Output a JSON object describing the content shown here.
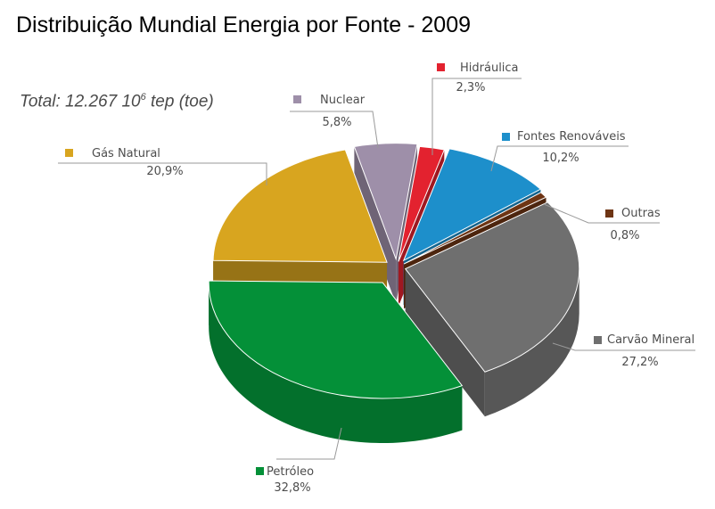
{
  "chart_data": {
    "type": "pie",
    "title": "Distribuição Mundial Energia por Fonte - 2009",
    "subtitle": {
      "prefix": "Total: 12.267 10",
      "sup": "6",
      "suffix": " tep (toe)"
    },
    "slices": [
      {
        "name": "Hidráulica",
        "value": 2.3,
        "label": "2,3%",
        "color": "#e3222f"
      },
      {
        "name": "Fontes Renováveis",
        "value": 10.2,
        "label": "10,2%",
        "color": "#1d8fcb"
      },
      {
        "name": "Outras",
        "value": 0.8,
        "label": "0,8%",
        "color": "#6e3514"
      },
      {
        "name": "Carvão Mineral",
        "value": 27.2,
        "label": "27,2%",
        "color": "#6f6f6f"
      },
      {
        "name": "Petróleo",
        "value": 32.8,
        "label": "32,8%",
        "color": "#049038"
      },
      {
        "name": "Gás Natural",
        "value": 20.9,
        "label": "20,9%",
        "color": "#d8a51f"
      },
      {
        "name": "Nuclear",
        "value": 5.8,
        "label": "5,8%",
        "color": "#9e8fa9"
      }
    ],
    "legend": "labels beside slices, connected by leader lines"
  }
}
